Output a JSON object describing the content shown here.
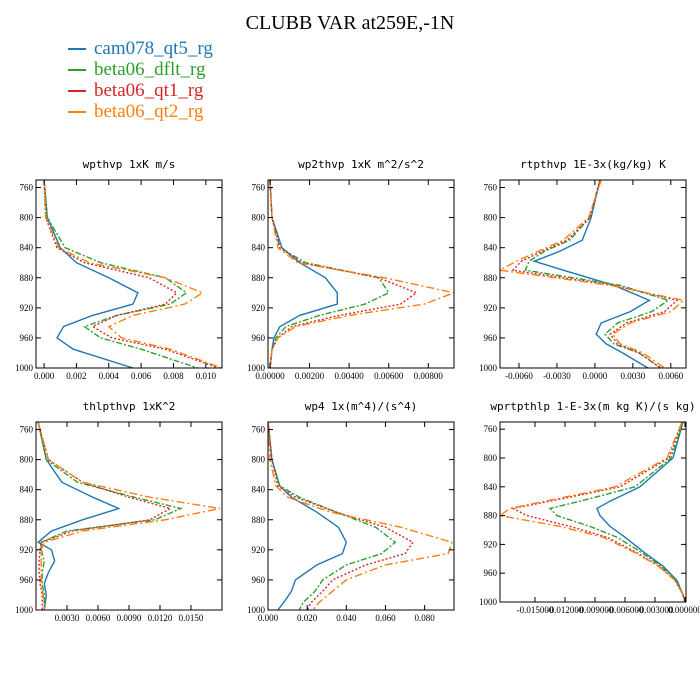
{
  "title": "CLUBB VAR at259E,-1N",
  "legend": [
    {
      "name": "cam078_qt5_rg",
      "color": "#1f77b4"
    },
    {
      "name": "beta06_dflt_rg",
      "color": "#2ca02c"
    },
    {
      "name": "beta06_qt1_rg",
      "color": "#d62728"
    },
    {
      "name": "beta06_qt2_rg",
      "color": "#ff7f0e"
    }
  ],
  "chart_data": [
    {
      "type": "line",
      "title": "wpthvp  1xK m/s",
      "xlim": [
        -0.0005,
        0.011
      ],
      "ylim": [
        1000,
        750
      ],
      "xticks": [
        "0.000",
        "0.002",
        "0.004",
        "0.006",
        "0.008",
        "0.010"
      ],
      "xtick_values": [
        0,
        0.002,
        0.004,
        0.006,
        0.008,
        0.01
      ],
      "yticks": [
        760,
        800,
        840,
        880,
        920,
        960,
        1000
      ],
      "y": [
        750,
        800,
        840,
        860,
        880,
        900,
        915,
        930,
        945,
        960,
        975,
        1000
      ],
      "series": [
        {
          "name": "cam078_qt5_rg",
          "color": "#1f77b4",
          "dash": "",
          "values": [
            0,
            0.0002,
            0.001,
            0.002,
            0.004,
            0.0058,
            0.0055,
            0.003,
            0.0012,
            0.0008,
            0.0018,
            0.0055
          ]
        },
        {
          "name": "beta06_dflt_rg",
          "color": "#2ca02c",
          "dash": "6,2,2,2",
          "values": [
            0,
            0.0002,
            0.0013,
            0.0035,
            0.0075,
            0.0088,
            0.0078,
            0.0045,
            0.0025,
            0.0035,
            0.006,
            0.0095
          ]
        },
        {
          "name": "beta06_qt1_rg",
          "color": "#d62728",
          "dash": "2,2",
          "values": [
            0,
            0.0001,
            0.0008,
            0.0025,
            0.0065,
            0.0082,
            0.0075,
            0.0045,
            0.003,
            0.0042,
            0.0075,
            0.0108
          ]
        },
        {
          "name": "beta06_qt2_rg",
          "color": "#ff7f0e",
          "dash": "8,3,2,3",
          "values": [
            0,
            0.0001,
            0.0009,
            0.0028,
            0.0075,
            0.0098,
            0.0087,
            0.0055,
            0.004,
            0.0048,
            0.0078,
            0.011
          ]
        }
      ]
    },
    {
      "type": "line",
      "title": "wp2thvp  1xK m^2/s^2",
      "xlim": [
        -0.0001,
        0.0093
      ],
      "ylim": [
        1000,
        750
      ],
      "xticks": [
        "0.00000",
        "0.00200",
        "0.00400",
        "0.00600",
        "0.00800"
      ],
      "xtick_values": [
        0,
        0.002,
        0.004,
        0.006,
        0.008
      ],
      "yticks": [
        760,
        800,
        840,
        880,
        920,
        960,
        1000
      ],
      "y": [
        750,
        800,
        840,
        860,
        880,
        900,
        915,
        930,
        945,
        960,
        975,
        1000
      ],
      "series": [
        {
          "name": "cam078_qt5_rg",
          "color": "#1f77b4",
          "dash": "",
          "values": [
            0,
            0.0001,
            0.0006,
            0.0015,
            0.0028,
            0.0034,
            0.0034,
            0.0015,
            0.0005,
            0.0002,
            0.0001,
            0
          ]
        },
        {
          "name": "beta06_dflt_rg",
          "color": "#2ca02c",
          "dash": "6,2,2,2",
          "values": [
            0,
            0.0001,
            0.0005,
            0.0018,
            0.0055,
            0.006,
            0.0048,
            0.0025,
            0.0008,
            0.0003,
            0.0001,
            0
          ]
        },
        {
          "name": "beta06_qt1_rg",
          "color": "#d62728",
          "dash": "2,2",
          "values": [
            0,
            0.0001,
            0.0005,
            0.0016,
            0.0055,
            0.0074,
            0.0066,
            0.0035,
            0.0011,
            0.0004,
            0.0001,
            0
          ]
        },
        {
          "name": "beta06_qt2_rg",
          "color": "#ff7f0e",
          "dash": "8,3,2,3",
          "values": [
            0,
            0.0001,
            0.0004,
            0.0014,
            0.0058,
            0.0093,
            0.0078,
            0.004,
            0.0013,
            0.0004,
            0.0001,
            0
          ]
        }
      ]
    },
    {
      "type": "line",
      "title": "rtpthvp  1E-3x(kg/kg) K",
      "xlim": [
        -0.0075,
        0.0072
      ],
      "ylim": [
        1000,
        750
      ],
      "xticks": [
        "-0.0060",
        "-0.0030",
        "0.0000",
        "0.0030",
        "0.0060"
      ],
      "xtick_values": [
        -0.006,
        -0.003,
        0,
        0.003,
        0.006
      ],
      "yticks": [
        760,
        800,
        840,
        880,
        920,
        960,
        1000
      ],
      "y": [
        750,
        800,
        830,
        845,
        858,
        870,
        890,
        910,
        925,
        940,
        955,
        968,
        980,
        1000
      ],
      "series": [
        {
          "name": "cam078_qt5_rg",
          "color": "#1f77b4",
          "dash": "",
          "values": [
            0.0004,
            -0.0003,
            -0.001,
            -0.0028,
            -0.0048,
            -0.0025,
            0.0015,
            0.0043,
            0.0028,
            0.0005,
            0.0001,
            0.0009,
            0.0022,
            0.0042
          ]
        },
        {
          "name": "beta06_dflt_rg",
          "color": "#2ca02c",
          "dash": "6,2,2,2",
          "values": [
            0.0004,
            -0.0004,
            -0.002,
            -0.004,
            -0.0052,
            -0.0055,
            0.002,
            0.0058,
            0.0045,
            0.0018,
            0.0008,
            0.0015,
            0.0035,
            0.0052
          ]
        },
        {
          "name": "beta06_qt1_rg",
          "color": "#d62728",
          "dash": "2,2",
          "values": [
            0.0004,
            -0.0004,
            -0.0022,
            -0.0042,
            -0.0058,
            -0.0065,
            0.0015,
            0.0065,
            0.0055,
            0.0025,
            0.0012,
            0.0018,
            0.0035,
            0.0052
          ]
        },
        {
          "name": "beta06_qt2_rg",
          "color": "#ff7f0e",
          "dash": "8,3,2,3",
          "values": [
            0.0005,
            -0.0005,
            -0.0025,
            -0.0045,
            -0.0062,
            -0.0075,
            0.0012,
            0.007,
            0.006,
            0.0028,
            0.0014,
            0.002,
            0.0038,
            0.0055
          ]
        }
      ]
    },
    {
      "type": "line",
      "title": "thlpthvp  1xK^2",
      "xlim": [
        0,
        0.018
      ],
      "ylim": [
        1000,
        750
      ],
      "xticks": [
        "0.0030",
        "0.0060",
        "0.0090",
        "0.0120",
        "0.0150"
      ],
      "xtick_values": [
        0.003,
        0.006,
        0.009,
        0.012,
        0.015
      ],
      "yticks": [
        760,
        800,
        840,
        880,
        920,
        960,
        1000
      ],
      "y": [
        750,
        800,
        830,
        850,
        865,
        880,
        895,
        910,
        920,
        935,
        950,
        965,
        980,
        1000
      ],
      "series": [
        {
          "name": "cam078_qt5_rg",
          "color": "#1f77b4",
          "dash": "",
          "values": [
            0.0002,
            0.001,
            0.0025,
            0.0055,
            0.008,
            0.0045,
            0.0015,
            0.0002,
            0.0015,
            0.0018,
            0.0012,
            0.0008,
            0.001,
            0.0008
          ]
        },
        {
          "name": "beta06_dflt_rg",
          "color": "#2ca02c",
          "dash": "6,2,2,2",
          "values": [
            0.0002,
            0.001,
            0.004,
            0.0095,
            0.014,
            0.0115,
            0.003,
            0.0005,
            0.0005,
            0.0008,
            0.0006,
            0.0006,
            0.0008,
            0.0008
          ]
        },
        {
          "name": "beta06_qt1_rg",
          "color": "#d62728",
          "dash": "2,2",
          "values": [
            0.0002,
            0.0012,
            0.0045,
            0.009,
            0.013,
            0.011,
            0.0035,
            0.0005,
            0.0004,
            0.0003,
            0.0003,
            0.0004,
            0.0006,
            0.0006
          ]
        },
        {
          "name": "beta06_qt2_rg",
          "color": "#ff7f0e",
          "dash": "8,3,2,3",
          "values": [
            0.0002,
            0.0012,
            0.0045,
            0.011,
            0.0178,
            0.0125,
            0.0045,
            0.0008,
            0.0005,
            0.0005,
            0.0005,
            0.0005,
            0.0007,
            0.0008
          ]
        }
      ]
    },
    {
      "type": "line",
      "title": "wp4  1x(m^4)/(s^4)",
      "xlim": [
        0,
        0.095
      ],
      "ylim": [
        1000,
        750
      ],
      "xticks": [
        "0.000",
        "0.020",
        "0.040",
        "0.060",
        "0.080"
      ],
      "xtick_values": [
        0,
        0.02,
        0.04,
        0.06,
        0.08
      ],
      "yticks": [
        760,
        800,
        840,
        880,
        920,
        960,
        1000
      ],
      "y": [
        750,
        800,
        835,
        850,
        870,
        890,
        910,
        925,
        940,
        960,
        975,
        990,
        1000
      ],
      "series": [
        {
          "name": "cam078_qt5_rg",
          "color": "#1f77b4",
          "dash": "",
          "values": [
            0,
            0.002,
            0.006,
            0.012,
            0.025,
            0.036,
            0.04,
            0.038,
            0.025,
            0.014,
            0.012,
            0.008,
            0.005
          ]
        },
        {
          "name": "beta06_dflt_rg",
          "color": "#2ca02c",
          "dash": "6,2,2,2",
          "values": [
            0,
            0.002,
            0.006,
            0.016,
            0.035,
            0.055,
            0.065,
            0.058,
            0.04,
            0.028,
            0.024,
            0.018,
            0.016
          ]
        },
        {
          "name": "beta06_qt1_rg",
          "color": "#d62728",
          "dash": "2,2",
          "values": [
            0,
            0.002,
            0.005,
            0.014,
            0.035,
            0.06,
            0.074,
            0.07,
            0.05,
            0.033,
            0.028,
            0.022,
            0.02
          ]
        },
        {
          "name": "beta06_qt2_rg",
          "color": "#ff7f0e",
          "dash": "8,3,2,3",
          "values": [
            0,
            0.001,
            0.004,
            0.01,
            0.032,
            0.068,
            0.094,
            0.092,
            0.06,
            0.04,
            0.033,
            0.026,
            0.023
          ]
        }
      ]
    },
    {
      "type": "line",
      "title": "wprtpthlp  1-E-3x(m kg K)/(s kg)",
      "xlim": [
        -0.0185,
        0.0001
      ],
      "ylim": [
        1000,
        750
      ],
      "xticks": [
        "-0.015000",
        "-0.012000",
        "-0.009000",
        "-0.006000",
        "-0.003000",
        "0.000000"
      ],
      "xtick_values": [
        -0.015,
        -0.012,
        -0.009,
        -0.006,
        -0.003,
        0
      ],
      "yticks": [
        760,
        800,
        840,
        880,
        920,
        960,
        1000
      ],
      "y": [
        750,
        800,
        840,
        860,
        870,
        880,
        895,
        910,
        930,
        950,
        970,
        990,
        1000
      ],
      "series": [
        {
          "name": "cam078_qt5_rg",
          "color": "#1f77b4",
          "dash": "",
          "values": [
            -0.0002,
            -0.0012,
            -0.0045,
            -0.0075,
            -0.0088,
            -0.0085,
            -0.0075,
            -0.006,
            -0.0042,
            -0.0022,
            -0.0008,
            -0.0002,
            0
          ]
        },
        {
          "name": "beta06_dflt_rg",
          "color": "#2ca02c",
          "dash": "6,2,2,2",
          "values": [
            -0.0002,
            -0.0014,
            -0.005,
            -0.0105,
            -0.0135,
            -0.0128,
            -0.0095,
            -0.0068,
            -0.0045,
            -0.0024,
            -0.0009,
            -0.0002,
            0
          ]
        },
        {
          "name": "beta06_qt1_rg",
          "color": "#d62728",
          "dash": "2,2",
          "values": [
            -0.0003,
            -0.0016,
            -0.0065,
            -0.0135,
            -0.0172,
            -0.0158,
            -0.0115,
            -0.0078,
            -0.005,
            -0.0026,
            -0.001,
            -0.0002,
            0
          ]
        },
        {
          "name": "beta06_qt2_rg",
          "color": "#ff7f0e",
          "dash": "8,3,2,3",
          "values": [
            -0.0003,
            -0.0018,
            -0.007,
            -0.014,
            -0.0175,
            -0.0185,
            -0.0125,
            -0.0082,
            -0.0052,
            -0.0027,
            -0.001,
            -0.0002,
            0
          ]
        }
      ]
    }
  ]
}
